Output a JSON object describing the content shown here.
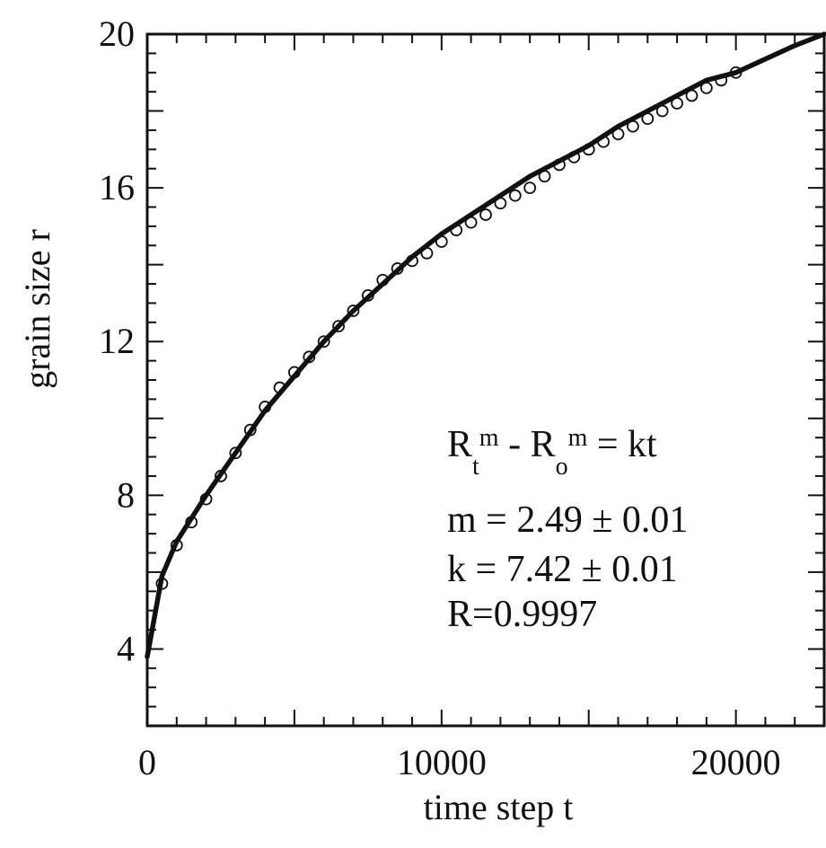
{
  "chart_data": {
    "type": "scatter",
    "title": "",
    "xlabel": "time step t",
    "ylabel": "grain size r",
    "xlim": [
      0,
      23000
    ],
    "ylim": [
      2,
      20
    ],
    "x_ticks": [
      0,
      10000,
      20000
    ],
    "x_tick_labels": [
      "0",
      "10000",
      "20000"
    ],
    "y_ticks": [
      4,
      8,
      12,
      16,
      20
    ],
    "y_tick_labels": [
      "4",
      "8",
      "12",
      "16",
      "20"
    ],
    "grid": false,
    "legend": "none",
    "series": [
      {
        "type": "scatter",
        "marker": "open-circle",
        "x": [
          500,
          1000,
          1500,
          2000,
          2500,
          3000,
          3500,
          4000,
          4500,
          5000,
          5500,
          6000,
          6500,
          7000,
          7500,
          8000,
          8500,
          9000,
          9500,
          10000,
          10500,
          11000,
          11500,
          12000,
          12500,
          13000,
          13500,
          14000,
          14500,
          15000,
          15500,
          16000,
          16500,
          17000,
          17500,
          18000,
          18500,
          19000,
          19500,
          20000
        ],
        "y": [
          5.7,
          6.7,
          7.3,
          7.9,
          8.5,
          9.1,
          9.7,
          10.3,
          10.8,
          11.2,
          11.6,
          12.0,
          12.4,
          12.8,
          13.2,
          13.6,
          13.9,
          14.1,
          14.3,
          14.6,
          14.9,
          15.1,
          15.3,
          15.6,
          15.8,
          16.0,
          16.3,
          16.6,
          16.8,
          17.0,
          17.2,
          17.4,
          17.6,
          17.8,
          18.0,
          18.2,
          18.4,
          18.6,
          18.8,
          19.0
        ]
      },
      {
        "type": "line",
        "x": [
          0,
          500,
          1000,
          2000,
          3000,
          4000,
          5000,
          6000,
          7000,
          8000,
          9000,
          10000,
          11000,
          12000,
          13000,
          14000,
          15000,
          16000,
          17000,
          18000,
          19000,
          20000,
          21000,
          22000,
          23000
        ],
        "y": [
          3.8,
          5.9,
          6.8,
          8.0,
          9.1,
          10.2,
          11.1,
          12.0,
          12.8,
          13.5,
          14.2,
          14.8,
          15.3,
          15.8,
          16.3,
          16.7,
          17.1,
          17.6,
          18.0,
          18.4,
          18.8,
          19.0,
          19.35,
          19.7,
          20.0
        ]
      }
    ],
    "annotations": {
      "formula": {
        "R1": "R",
        "sub1": "t",
        "sup1": "m",
        "mid": " - R",
        "sub2": "o",
        "sup2": "m",
        "rest": " = kt"
      },
      "m_line": "m = 2.49 ± 0.01",
      "k_line": "k = 7.42 ± 0.01",
      "r_line": "R=0.9997"
    }
  }
}
